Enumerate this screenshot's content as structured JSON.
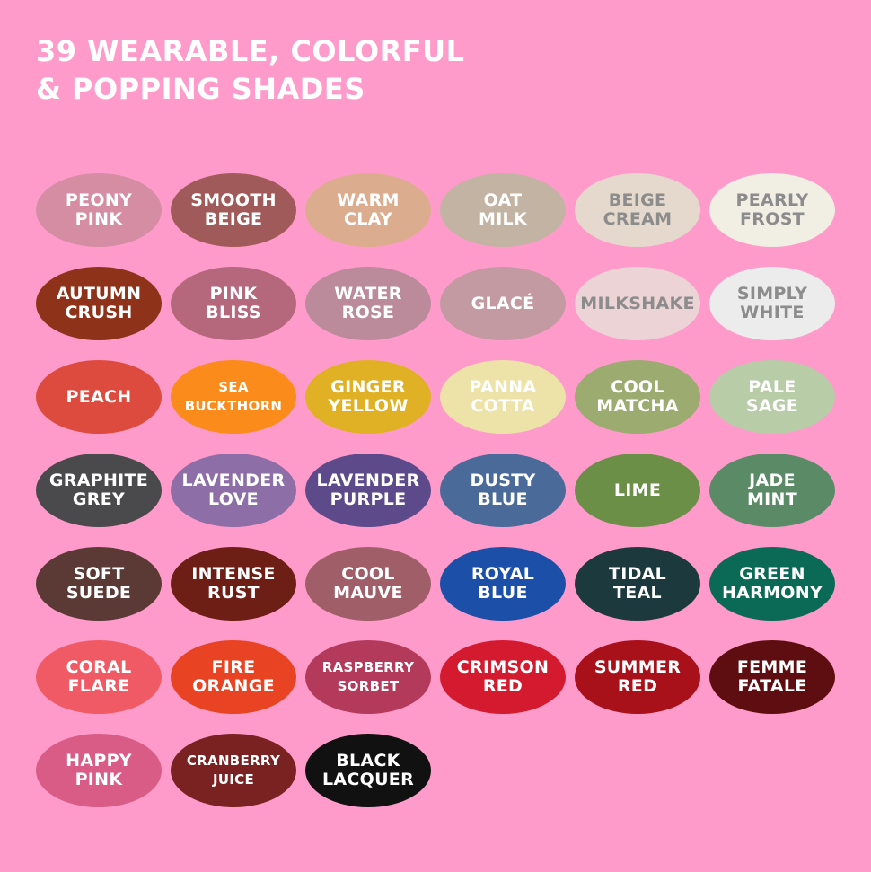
{
  "title": [
    "39 WEARABLE, COLORFUL",
    "& POPPING SHADES"
  ],
  "shades": [
    {
      "label": "PEONY\nPINK",
      "color": "#d48da3",
      "text": "#ffffff"
    },
    {
      "label": "SMOOTH\nBEIGE",
      "color": "#a15a5a",
      "text": "#ffffff"
    },
    {
      "label": "WARM\nCLAY",
      "color": "#dcac8e",
      "text": "#ffffff"
    },
    {
      "label": "OAT\nMILK",
      "color": "#c2b3a3",
      "text": "#ffffff"
    },
    {
      "label": "BEIGE\nCREAM",
      "color": "#e4d9cc",
      "text": "#8c8c8c"
    },
    {
      "label": "PEARLY\nFROST",
      "color": "#f1efe4",
      "text": "#8c8c8c"
    },
    {
      "label": "AUTUMN\nCRUSH",
      "color": "#8e3219",
      "text": "#ffffff"
    },
    {
      "label": "PINK\nBLISS",
      "color": "#b5677c",
      "text": "#ffffff"
    },
    {
      "label": "WATER\nROSE",
      "color": "#bb8b9b",
      "text": "#ffffff"
    },
    {
      "label": "GLACÉ",
      "color": "#c39aa2",
      "text": "#ffffff"
    },
    {
      "label": "MILKSHAKE",
      "color": "#ecd4d6",
      "text": "#8c8c8c"
    },
    {
      "label": "SIMPLY\nWHITE",
      "color": "#ececec",
      "text": "#8c8c8c"
    },
    {
      "label": "PEACH",
      "color": "#dc4b3e",
      "text": "#ffffff"
    },
    {
      "label": "SEA\nBUCKTHORN",
      "color": "#fb8c1c",
      "text": "#ffffff",
      "small": true
    },
    {
      "label": "GINGER\nYELLOW",
      "color": "#e0b125",
      "text": "#ffffff"
    },
    {
      "label": "PANNA\nCOTTA",
      "color": "#ede3a9",
      "text": "#ffffff"
    },
    {
      "label": "COOL\nMATCHA",
      "color": "#9cab6f",
      "text": "#ffffff"
    },
    {
      "label": "PALE\nSAGE",
      "color": "#b8cca7",
      "text": "#ffffff"
    },
    {
      "label": "GRAPHITE\nGREY",
      "color": "#4a4a4c",
      "text": "#ffffff"
    },
    {
      "label": "LAVENDER\nLOVE",
      "color": "#8e6ea7",
      "text": "#ffffff"
    },
    {
      "label": "LAVENDER\nPURPLE",
      "color": "#5d4a8a",
      "text": "#ffffff"
    },
    {
      "label": "DUSTY\nBLUE",
      "color": "#4a6b9a",
      "text": "#ffffff"
    },
    {
      "label": "LIME",
      "color": "#6c8f48",
      "text": "#ffffff"
    },
    {
      "label": "JADE\nMINT",
      "color": "#5a8a66",
      "text": "#ffffff"
    },
    {
      "label": "SOFT\nSUEDE",
      "color": "#5b3a36",
      "text": "#ffffff"
    },
    {
      "label": "INTENSE\nRUST",
      "color": "#6e1f15",
      "text": "#ffffff"
    },
    {
      "label": "COOL\nMAUVE",
      "color": "#a05e68",
      "text": "#ffffff"
    },
    {
      "label": "ROYAL\nBLUE",
      "color": "#1b4fa8",
      "text": "#ffffff"
    },
    {
      "label": "TIDAL\nTEAL",
      "color": "#1c3a3e",
      "text": "#ffffff"
    },
    {
      "label": "GREEN\nHARMONY",
      "color": "#0b6a55",
      "text": "#ffffff"
    },
    {
      "label": "CORAL\nFLARE",
      "color": "#f05a64",
      "text": "#ffffff"
    },
    {
      "label": "FIRE\nORANGE",
      "color": "#e84423",
      "text": "#ffffff"
    },
    {
      "label": "RASPBERRY\nSORBET",
      "color": "#b43a5c",
      "text": "#ffffff",
      "small": true
    },
    {
      "label": "CRIMSON\nRED",
      "color": "#d41a2e",
      "text": "#ffffff"
    },
    {
      "label": "SUMMER\nRED",
      "color": "#a8101a",
      "text": "#ffffff"
    },
    {
      "label": "FEMME\nFATALE",
      "color": "#5e0e10",
      "text": "#ffffff"
    },
    {
      "label": "HAPPY\nPINK",
      "color": "#d85c86",
      "text": "#ffffff"
    },
    {
      "label": "CRANBERRY\nJUICE",
      "color": "#7a2222",
      "text": "#ffffff",
      "small": true
    },
    {
      "label": "BLACK\nLACQUER",
      "color": "#111111",
      "text": "#ffffff"
    }
  ]
}
